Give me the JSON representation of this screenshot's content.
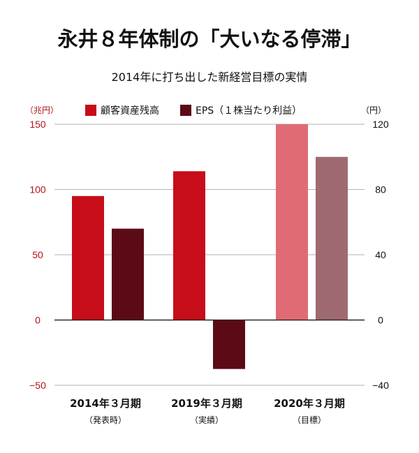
{
  "title": "永井８年体制の「大いなる停滞」",
  "subtitle": "2014年に打ち出した新経営目標の実情",
  "axes": {
    "left_unit": "（兆円）",
    "right_unit": "（円）"
  },
  "colors": {
    "series_0": "#c70d1a",
    "series_1": "#5c0b16",
    "series_0_target": "#e06b74",
    "series_1_target": "#9e6a70",
    "left_axis_text": "#b5121b"
  },
  "chart_data": {
    "type": "bar",
    "categories": [
      "2014年３月期",
      "2019年３月期",
      "2020年３月期"
    ],
    "category_notes": [
      "（発表時）",
      "（実績）",
      "（目標）"
    ],
    "series": [
      {
        "name": "顧客資産残高",
        "axis": "left",
        "values": [
          95,
          114,
          150
        ]
      },
      {
        "name": "EPS（１株当たり利益）",
        "axis": "right",
        "values": [
          56,
          -30,
          100
        ]
      }
    ],
    "highlighted_category": 2,
    "left_axis": {
      "ylim": [
        -50,
        150
      ],
      "ticks": [
        150,
        100,
        50,
        0,
        -50
      ]
    },
    "right_axis": {
      "ylim": [
        -40,
        120
      ],
      "ticks": [
        120,
        80,
        40,
        0,
        -40
      ]
    },
    "grid": true,
    "legend_position": "top"
  }
}
